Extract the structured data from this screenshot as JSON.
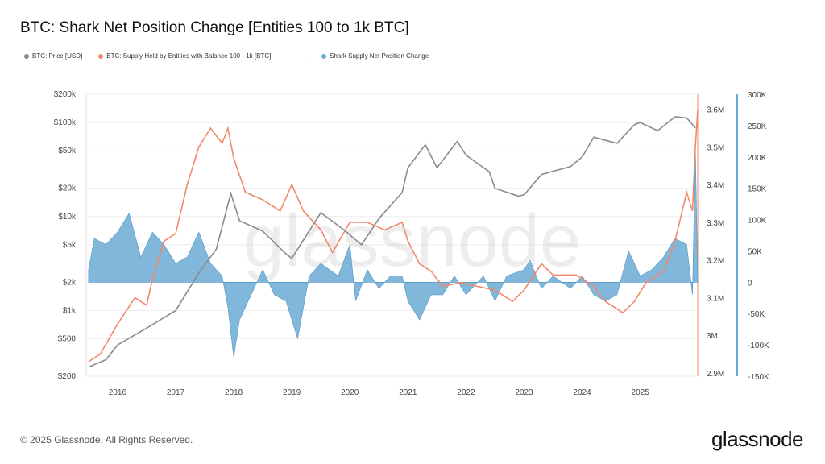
{
  "title": "BTC: Shark Net Position Change [Entities 100 to 1k BTC]",
  "legend": [
    {
      "label": "BTC: Price [USD]",
      "color": "#8a8a8a"
    },
    {
      "label": "BTC: Supply Held by Entities with Balance 100 - 1k [BTC]",
      "color": "#f0896b"
    },
    {
      "label": "-",
      "color": ""
    },
    {
      "label": "Shark Supply Net Position Change",
      "color": "#6aaad4"
    }
  ],
  "footer": "© 2025 Glassnode. All Rights Reserved.",
  "logo": "glassnode",
  "watermark": "glassnode",
  "chart_data": {
    "type": "line",
    "title": "BTC: Shark Net Position Change [Entities 100 to 1k BTC]",
    "x_ticks": [
      "2016",
      "2017",
      "2018",
      "2019",
      "2020",
      "2021",
      "2022",
      "2023",
      "2024",
      "2025"
    ],
    "xlim": [
      2015.46,
      2025.99
    ],
    "axes": {
      "price": {
        "scale": "log",
        "ylim": [
          200,
          200000
        ],
        "ticks": [
          "$200",
          "$500",
          "$1k",
          "$2k",
          "$5k",
          "$10k",
          "$20k",
          "$50k",
          "$100k",
          "$200k"
        ],
        "tick_values": [
          200,
          500,
          1000,
          2000,
          5000,
          10000,
          20000,
          50000,
          100000,
          200000
        ]
      },
      "supply": {
        "scale": "linear",
        "ylim": [
          2.9,
          3.6
        ],
        "ticks": [
          "2.9M",
          "3M",
          "3.1M",
          "3.2M",
          "3.3M",
          "3.4M",
          "3.5M",
          "3.6M"
        ],
        "tick_values": [
          2.9,
          3.0,
          3.1,
          3.2,
          3.3,
          3.4,
          3.5,
          3.6
        ],
        "color": "#f0896b"
      },
      "net": {
        "scale": "linear",
        "ylim": [
          -150,
          300
        ],
        "ticks": [
          "-150K",
          "-100K",
          "-50K",
          "0",
          "50K",
          "100K",
          "150K",
          "200K",
          "250K",
          "300K"
        ],
        "tick_values": [
          -150,
          -100,
          -50,
          0,
          50,
          100,
          150,
          200,
          250,
          300
        ],
        "color": "#6aaad4"
      }
    },
    "grid": true,
    "series": [
      {
        "name": "BTC: Price [USD]",
        "axis": "price",
        "color": "#8a8a8a",
        "x": [
          2015.5,
          2015.8,
          2016.0,
          2016.5,
          2017.0,
          2017.4,
          2017.7,
          2017.95,
          2018.1,
          2018.5,
          2018.9,
          2019.0,
          2019.5,
          2019.9,
          2020.2,
          2020.5,
          2020.9,
          2021.0,
          2021.3,
          2021.5,
          2021.85,
          2022.0,
          2022.4,
          2022.5,
          2022.9,
          2023.0,
          2023.3,
          2023.8,
          2024.0,
          2024.2,
          2024.6,
          2024.9,
          2025.0,
          2025.3,
          2025.6,
          2025.8,
          2025.95
        ],
        "y": [
          250,
          300,
          430,
          650,
          1000,
          2500,
          4500,
          17600,
          9000,
          7000,
          4000,
          3600,
          11000,
          7200,
          5000,
          9500,
          18000,
          33000,
          58000,
          33000,
          63000,
          45000,
          30000,
          20000,
          16500,
          17000,
          28000,
          34000,
          43000,
          70000,
          60000,
          95000,
          100000,
          82000,
          115000,
          112000,
          88000
        ]
      },
      {
        "name": "BTC: Supply Held by Entities with Balance 100 - 1k [BTC]",
        "axis": "supply",
        "color": "#f0896b",
        "x": [
          2015.5,
          2015.7,
          2016.0,
          2016.3,
          2016.5,
          2016.6,
          2016.8,
          2017.0,
          2017.2,
          2017.4,
          2017.6,
          2017.8,
          2017.9,
          2018.0,
          2018.2,
          2018.5,
          2018.8,
          2019.0,
          2019.2,
          2019.5,
          2019.7,
          2020.0,
          2020.3,
          2020.6,
          2020.9,
          2021.0,
          2021.2,
          2021.4,
          2021.6,
          2021.9,
          2022.2,
          2022.5,
          2022.8,
          2023.0,
          2023.3,
          2023.5,
          2023.9,
          2024.2,
          2024.4,
          2024.7,
          2024.9,
          2025.1,
          2025.4,
          2025.6,
          2025.8,
          2025.9,
          2025.95,
          2025.99
        ],
        "y": [
          2.93,
          2.95,
          3.03,
          3.1,
          3.08,
          3.15,
          3.25,
          3.27,
          3.4,
          3.5,
          3.55,
          3.51,
          3.55,
          3.47,
          3.38,
          3.36,
          3.33,
          3.4,
          3.33,
          3.28,
          3.22,
          3.3,
          3.3,
          3.28,
          3.3,
          3.25,
          3.19,
          3.17,
          3.13,
          3.14,
          3.13,
          3.12,
          3.09,
          3.12,
          3.19,
          3.16,
          3.16,
          3.13,
          3.09,
          3.06,
          3.09,
          3.14,
          3.17,
          3.25,
          3.38,
          3.33,
          3.5,
          3.6
        ]
      },
      {
        "name": "Shark Supply Net Position Change",
        "axis": "net",
        "type": "area",
        "color": "#6aaad4",
        "x": [
          2015.5,
          2015.6,
          2015.8,
          2016.0,
          2016.2,
          2016.4,
          2016.6,
          2016.8,
          2017.0,
          2017.2,
          2017.4,
          2017.6,
          2017.8,
          2017.9,
          2018.0,
          2018.1,
          2018.3,
          2018.5,
          2018.7,
          2018.9,
          2019.1,
          2019.3,
          2019.5,
          2019.8,
          2020.0,
          2020.1,
          2020.3,
          2020.5,
          2020.7,
          2020.9,
          2021.0,
          2021.2,
          2021.4,
          2021.6,
          2021.8,
          2022.0,
          2022.3,
          2022.5,
          2022.7,
          2023.0,
          2023.1,
          2023.3,
          2023.5,
          2023.8,
          2024.0,
          2024.2,
          2024.4,
          2024.6,
          2024.8,
          2025.0,
          2025.2,
          2025.4,
          2025.6,
          2025.8,
          2025.9,
          2025.95,
          2025.99
        ],
        "y": [
          20,
          70,
          60,
          80,
          110,
          40,
          80,
          60,
          30,
          40,
          80,
          30,
          10,
          -40,
          -120,
          -60,
          -20,
          20,
          -20,
          -30,
          -90,
          10,
          30,
          10,
          60,
          -30,
          20,
          -10,
          10,
          10,
          -30,
          -60,
          -20,
          -20,
          10,
          -20,
          10,
          -30,
          10,
          20,
          35,
          -10,
          10,
          -10,
          10,
          -20,
          -30,
          -20,
          50,
          10,
          20,
          40,
          70,
          60,
          -20,
          218,
          0
        ]
      }
    ]
  }
}
